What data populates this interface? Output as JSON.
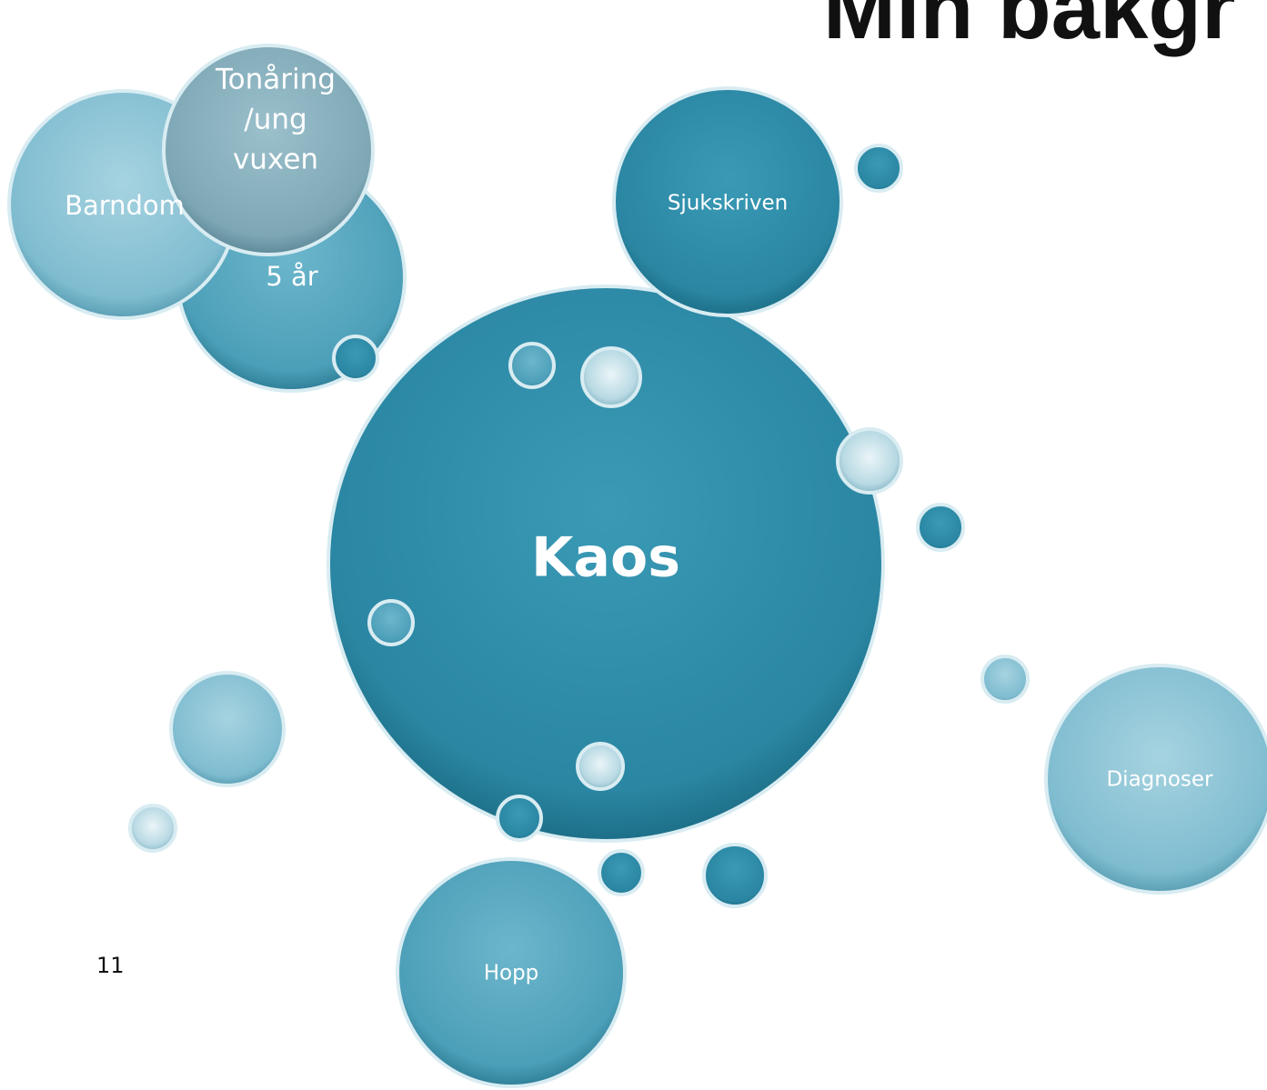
{
  "header": {
    "title": "Min bakgr"
  },
  "nodes": [
    {
      "label": "Kaos"
    },
    {
      "label": [
        "Tonåring",
        "/ung",
        "vuxen"
      ]
    },
    {
      "label": "Barndom"
    },
    {
      "label": "5 år"
    },
    {
      "label": "Sjukskriven"
    },
    {
      "label": "Diagnoser"
    },
    {
      "label": "Hopp"
    }
  ],
  "footer": {
    "page_number": "11"
  }
}
